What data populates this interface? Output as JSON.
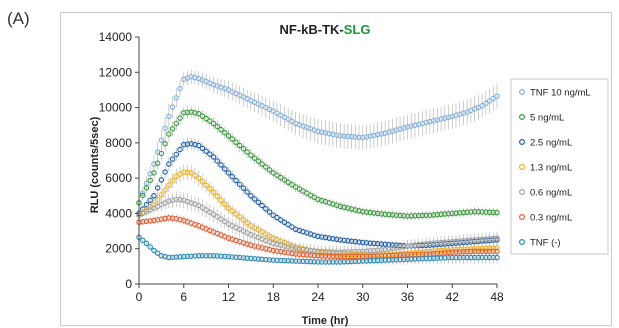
{
  "panel_label": "(A)",
  "chart_data": {
    "type": "scatter",
    "title_main": "NF-kB-TK-",
    "title_accent": "SLG",
    "title_accent_color": "#1a9a3a",
    "xlabel": "Time (hr)",
    "ylabel": "RLU (counts/5sec)",
    "xlim": [
      0,
      48
    ],
    "ylim": [
      0,
      14000
    ],
    "xticks": [
      "0",
      "6",
      "12",
      "18",
      "24",
      "30",
      "36",
      "42",
      "48"
    ],
    "yticks": [
      "0",
      "2000",
      "4000",
      "6000",
      "8000",
      "10000",
      "12000",
      "14000"
    ],
    "grid": false,
    "error_bars": true,
    "legend_position": "right",
    "series": [
      {
        "name": "TNF 10 ng/mL",
        "color": "#7fb0e0",
        "errorbar_color": "#b8b8b8",
        "x": [
          0,
          2,
          4,
          6,
          7,
          8,
          10,
          12,
          15,
          18,
          21,
          24,
          27,
          30,
          33,
          36,
          38,
          40,
          42,
          44,
          46,
          48
        ],
        "y": [
          4600,
          6800,
          9500,
          11600,
          11750,
          11650,
          11300,
          11000,
          10400,
          9800,
          9100,
          8650,
          8400,
          8300,
          8550,
          8900,
          9100,
          9300,
          9500,
          9750,
          10100,
          10650
        ],
        "err": [
          300,
          500,
          700,
          400,
          400,
          400,
          450,
          500,
          550,
          600,
          650,
          700,
          700,
          700,
          700,
          700,
          700,
          700,
          700,
          700,
          700,
          700
        ]
      },
      {
        "name": "5 ng/mL",
        "color": "#3a9a3a",
        "errorbar_color": "#b8b8b8",
        "x": [
          0,
          2,
          4,
          6,
          7,
          8,
          10,
          12,
          15,
          18,
          21,
          24,
          27,
          30,
          33,
          36,
          39,
          42,
          45,
          48
        ],
        "y": [
          4600,
          6300,
          8500,
          9700,
          9750,
          9650,
          9100,
          8400,
          7300,
          6300,
          5500,
          4800,
          4400,
          4100,
          3950,
          3850,
          3900,
          4000,
          4100,
          4050
        ],
        "err": [
          250,
          350,
          450,
          350,
          350,
          350,
          350,
          350,
          350,
          300,
          300,
          250,
          250,
          250,
          250,
          250,
          250,
          250,
          250,
          250
        ]
      },
      {
        "name": "2.5 ng/mL",
        "color": "#1f5fa8",
        "errorbar_color": "#b8b8b8",
        "x": [
          0,
          2,
          4,
          6,
          7,
          8,
          10,
          12,
          15,
          18,
          21,
          24,
          27,
          30,
          33,
          36,
          39,
          42,
          45,
          48
        ],
        "y": [
          4000,
          5000,
          6800,
          7900,
          7950,
          7850,
          7200,
          6300,
          5000,
          3900,
          3100,
          2700,
          2500,
          2350,
          2250,
          2150,
          2200,
          2300,
          2400,
          2500
        ],
        "err": [
          200,
          300,
          400,
          350,
          350,
          350,
          350,
          350,
          300,
          250,
          200,
          200,
          200,
          200,
          200,
          200,
          200,
          200,
          200,
          200
        ]
      },
      {
        "name": "1.3 ng/mL",
        "color": "#f0ae1a",
        "errorbar_color": "#b8b8b8",
        "x": [
          0,
          2,
          4,
          5,
          6,
          7,
          8,
          10,
          12,
          15,
          18,
          21,
          24,
          27,
          30,
          33,
          36,
          39,
          42,
          45,
          48
        ],
        "y": [
          3900,
          4500,
          5600,
          6100,
          6350,
          6300,
          6000,
          5200,
          4300,
          3300,
          2600,
          2100,
          1800,
          1700,
          1650,
          1650,
          1750,
          1850,
          1950,
          2000,
          2050
        ],
        "err": [
          200,
          300,
          400,
          450,
          450,
          450,
          450,
          400,
          350,
          300,
          250,
          250,
          250,
          250,
          250,
          250,
          250,
          250,
          250,
          250,
          250
        ]
      },
      {
        "name": "0.6 ng/mL",
        "color": "#a0a0a0",
        "errorbar_color": "#b8b8b8",
        "x": [
          0,
          2,
          4,
          5,
          6,
          8,
          10,
          12,
          15,
          18,
          21,
          24,
          27,
          30,
          33,
          36,
          39,
          42,
          45,
          48
        ],
        "y": [
          3900,
          4300,
          4700,
          4800,
          4750,
          4450,
          3950,
          3400,
          2800,
          2300,
          2000,
          1850,
          1800,
          1850,
          1950,
          2150,
          2300,
          2400,
          2500,
          2600
        ],
        "err": [
          200,
          300,
          400,
          450,
          450,
          450,
          450,
          400,
          400,
          350,
          350,
          350,
          350,
          350,
          350,
          350,
          350,
          350,
          350,
          350
        ]
      },
      {
        "name": "0.3 ng/mL",
        "color": "#e85a2a",
        "errorbar_color": "#b8b8b8",
        "x": [
          0,
          2,
          4,
          5,
          6,
          8,
          10,
          12,
          15,
          18,
          21,
          24,
          27,
          30,
          33,
          36,
          39,
          42,
          45,
          48
        ],
        "y": [
          3500,
          3600,
          3750,
          3700,
          3600,
          3300,
          2950,
          2600,
          2200,
          1900,
          1700,
          1600,
          1550,
          1550,
          1600,
          1650,
          1700,
          1800,
          1850,
          1850
        ],
        "err": [
          150,
          200,
          250,
          250,
          250,
          250,
          250,
          250,
          250,
          250,
          250,
          250,
          250,
          250,
          250,
          250,
          250,
          250,
          250,
          250
        ]
      },
      {
        "name": "TNF (-)",
        "color": "#2a8ab8",
        "errorbar_color": "#b8b8b8",
        "x": [
          0,
          1,
          2,
          3,
          4,
          6,
          8,
          10,
          12,
          15,
          18,
          21,
          24,
          27,
          30,
          33,
          36,
          39,
          42,
          45,
          48
        ],
        "y": [
          2650,
          2300,
          1900,
          1600,
          1500,
          1550,
          1600,
          1600,
          1550,
          1450,
          1350,
          1300,
          1250,
          1250,
          1300,
          1350,
          1400,
          1450,
          1500,
          1500,
          1500
        ],
        "err": [
          100,
          100,
          100,
          100,
          100,
          100,
          100,
          100,
          100,
          150,
          150,
          150,
          150,
          200,
          200,
          250,
          300,
          300,
          350,
          350,
          350
        ]
      }
    ]
  }
}
